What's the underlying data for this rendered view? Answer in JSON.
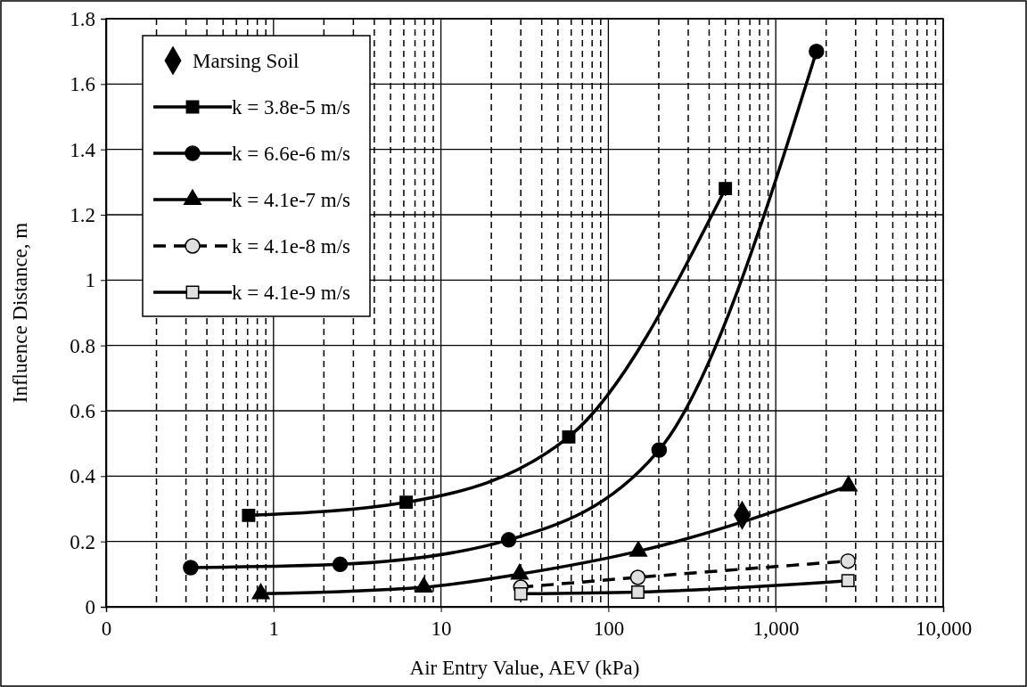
{
  "chart_data": {
    "type": "line",
    "xlabel": "Air Entry Value, AEV (kPa)",
    "ylabel": "Influence Distance, m",
    "log": "x",
    "grid": true,
    "legend": "top left",
    "xlim": [
      0.1,
      10000
    ],
    "xticks": [
      {
        "value": 0.1,
        "label": "0"
      },
      1,
      10,
      100,
      {
        "value": 1000,
        "label": "1,000"
      },
      {
        "value": 10000,
        "label": "10,000"
      }
    ],
    "ylim": [
      0,
      1.8
    ],
    "yticks": [
      0,
      0.2,
      0.4,
      0.6,
      0.8,
      1,
      1.2,
      1.4,
      1.6,
      1.8
    ],
    "series": [
      {
        "name": "Marsing Soil",
        "type": "scatter",
        "marker": "diamond",
        "color": "#000000",
        "x": [
          630
        ],
        "values": [
          0.28
        ]
      },
      {
        "name": "k = 3.8e-5 m/s",
        "marker": "square",
        "line_style": "solid",
        "color": "#000000",
        "x": [
          0.71,
          6.2,
          58,
          500
        ],
        "values": [
          0.28,
          0.32,
          0.52,
          1.28
        ]
      },
      {
        "name": "k = 6.6e-6 m/s",
        "marker": "circle",
        "line_style": "solid",
        "color": "#000000",
        "x": [
          0.32,
          2.5,
          25.4,
          201,
          1750
        ],
        "values": [
          0.12,
          0.13,
          0.205,
          0.48,
          1.7
        ]
      },
      {
        "name": "k = 4.1e-7 m/s",
        "marker": "triangle",
        "line_style": "solid",
        "color": "#000000",
        "x": [
          0.84,
          7.9,
          29.5,
          151,
          2720
        ],
        "values": [
          0.04,
          0.06,
          0.1,
          0.17,
          0.37
        ]
      },
      {
        "name": "k = 4.1e-8 m/s",
        "marker": "circle",
        "line_style": "dashed",
        "color": "#e0e0e0",
        "x": [
          30,
          150,
          2700
        ],
        "values": [
          0.06,
          0.09,
          0.14
        ]
      },
      {
        "name": "k = 4.1e-9 m/s",
        "marker": "square",
        "line_style": "solid",
        "color": "#e0e0e0",
        "x": [
          30,
          150,
          2700
        ],
        "values": [
          0.04,
          0.045,
          0.08
        ]
      }
    ]
  }
}
